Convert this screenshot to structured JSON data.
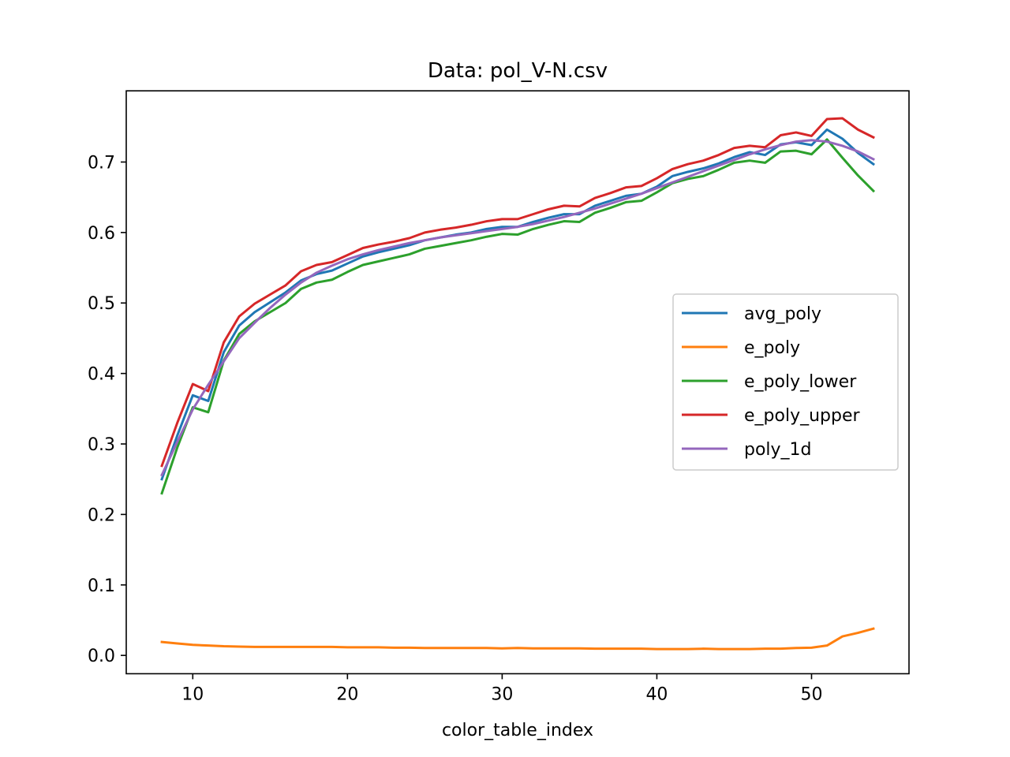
{
  "chart_data": {
    "type": "line",
    "title": "Data: pol_V-N.csv",
    "xlabel": "color_table_index",
    "ylabel": "",
    "xlim": [
      5.7,
      56.3
    ],
    "ylim": [
      -0.026,
      0.801
    ],
    "xticks": [
      10,
      20,
      30,
      40,
      50
    ],
    "yticks": [
      0.0,
      0.1,
      0.2,
      0.3,
      0.4,
      0.5,
      0.6,
      0.7
    ],
    "xtick_labels": [
      "10",
      "20",
      "30",
      "40",
      "50"
    ],
    "ytick_labels": [
      "0.0",
      "0.1",
      "0.2",
      "0.3",
      "0.4",
      "0.5",
      "0.6",
      "0.7"
    ],
    "grid": false,
    "legend_position": "center-right",
    "x": [
      8,
      9,
      10,
      11,
      12,
      13,
      14,
      15,
      16,
      17,
      18,
      19,
      20,
      21,
      22,
      23,
      24,
      25,
      26,
      27,
      28,
      29,
      30,
      31,
      32,
      33,
      34,
      35,
      36,
      37,
      38,
      39,
      40,
      41,
      42,
      43,
      44,
      45,
      46,
      47,
      48,
      49,
      50,
      51,
      52,
      53,
      54
    ],
    "series": [
      {
        "name": "avg_poly",
        "color": "#1f77b4",
        "values": [
          0.25,
          0.312,
          0.369,
          0.361,
          0.43,
          0.468,
          0.487,
          0.501,
          0.515,
          0.532,
          0.541,
          0.546,
          0.556,
          0.566,
          0.572,
          0.577,
          0.582,
          0.589,
          0.593,
          0.597,
          0.6,
          0.605,
          0.608,
          0.608,
          0.615,
          0.621,
          0.626,
          0.626,
          0.638,
          0.645,
          0.652,
          0.655,
          0.665,
          0.68,
          0.686,
          0.691,
          0.698,
          0.707,
          0.714,
          0.71,
          0.725,
          0.728,
          0.724,
          0.746,
          0.733,
          0.713,
          0.697
        ]
      },
      {
        "name": "e_poly",
        "color": "#ff7f0e",
        "values": [
          0.019,
          0.017,
          0.015,
          0.014,
          0.013,
          0.0125,
          0.012,
          0.012,
          0.012,
          0.012,
          0.012,
          0.012,
          0.0115,
          0.0115,
          0.0115,
          0.011,
          0.011,
          0.0105,
          0.0105,
          0.0105,
          0.0105,
          0.0105,
          0.01,
          0.0105,
          0.01,
          0.01,
          0.01,
          0.01,
          0.0095,
          0.0095,
          0.0095,
          0.0095,
          0.009,
          0.009,
          0.009,
          0.0095,
          0.009,
          0.009,
          0.009,
          0.0095,
          0.0095,
          0.0105,
          0.011,
          0.014,
          0.027,
          0.032,
          0.038
        ]
      },
      {
        "name": "e_poly_lower",
        "color": "#2ca02c",
        "values": [
          0.23,
          0.295,
          0.352,
          0.345,
          0.418,
          0.456,
          0.474,
          0.487,
          0.5,
          0.52,
          0.529,
          0.533,
          0.544,
          0.554,
          0.559,
          0.564,
          0.569,
          0.577,
          0.581,
          0.585,
          0.589,
          0.594,
          0.598,
          0.597,
          0.605,
          0.611,
          0.616,
          0.615,
          0.628,
          0.635,
          0.643,
          0.645,
          0.657,
          0.67,
          0.676,
          0.68,
          0.689,
          0.699,
          0.702,
          0.699,
          0.715,
          0.716,
          0.711,
          0.732,
          0.706,
          0.681,
          0.659
        ]
      },
      {
        "name": "e_poly_upper",
        "color": "#d62728",
        "values": [
          0.269,
          0.33,
          0.385,
          0.375,
          0.444,
          0.481,
          0.499,
          0.512,
          0.525,
          0.545,
          0.554,
          0.558,
          0.568,
          0.578,
          0.583,
          0.587,
          0.592,
          0.6,
          0.604,
          0.607,
          0.611,
          0.616,
          0.619,
          0.619,
          0.626,
          0.633,
          0.638,
          0.637,
          0.649,
          0.656,
          0.664,
          0.666,
          0.677,
          0.69,
          0.697,
          0.702,
          0.71,
          0.72,
          0.723,
          0.721,
          0.738,
          0.742,
          0.737,
          0.761,
          0.762,
          0.746,
          0.735
        ]
      },
      {
        "name": "poly_1d",
        "color": "#9467bd",
        "values": [
          0.256,
          0.303,
          0.349,
          0.384,
          0.417,
          0.45,
          0.472,
          0.493,
          0.512,
          0.529,
          0.543,
          0.553,
          0.562,
          0.569,
          0.575,
          0.58,
          0.585,
          0.589,
          0.593,
          0.596,
          0.599,
          0.602,
          0.605,
          0.608,
          0.612,
          0.617,
          0.622,
          0.628,
          0.634,
          0.641,
          0.648,
          0.655,
          0.663,
          0.671,
          0.679,
          0.687,
          0.695,
          0.703,
          0.711,
          0.718,
          0.724,
          0.729,
          0.731,
          0.729,
          0.723,
          0.715,
          0.704
        ]
      }
    ]
  }
}
